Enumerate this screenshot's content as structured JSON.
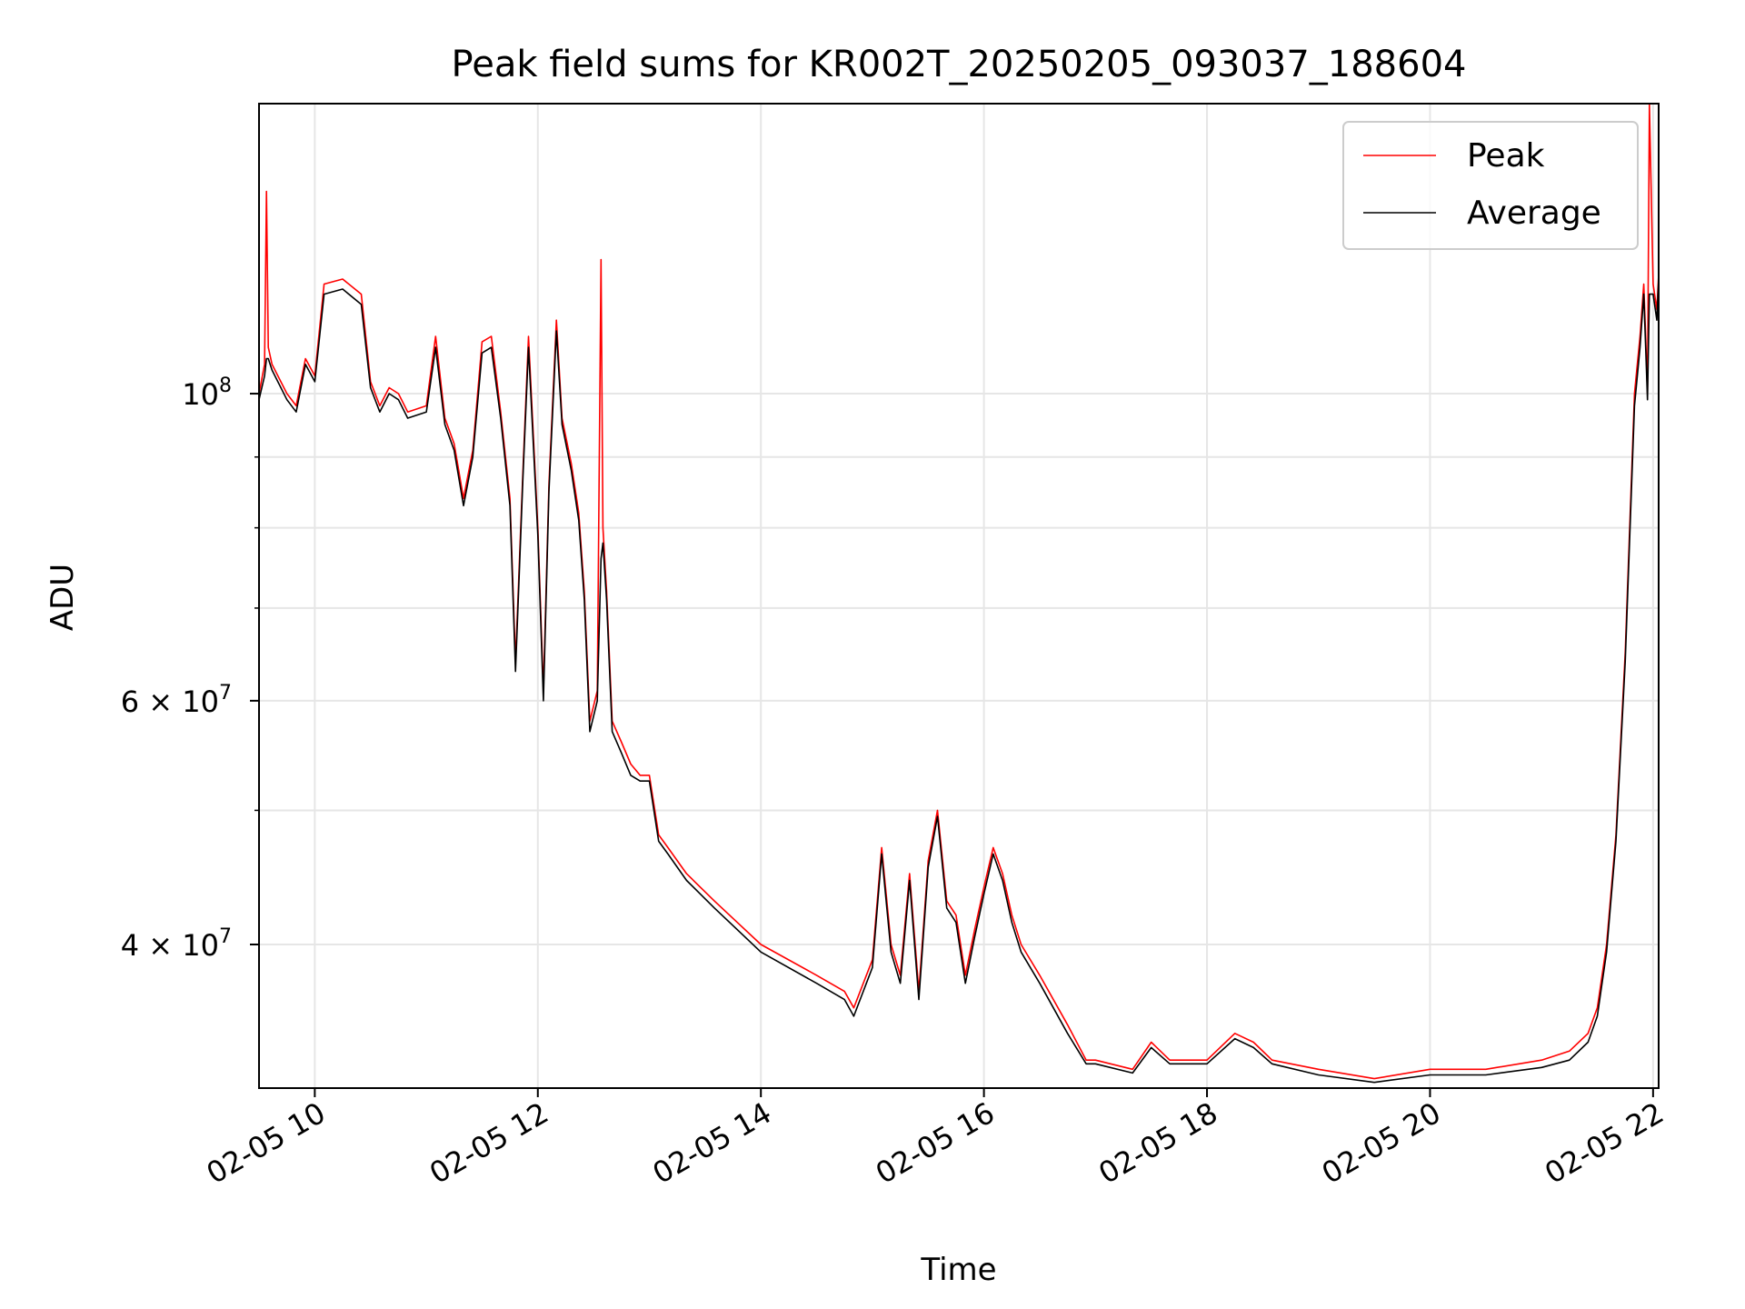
{
  "chart_data": {
    "type": "line",
    "title": "Peak field sums for KR002T_20250205_093037_188604",
    "xlabel": "Time",
    "ylabel": "ADU",
    "yscale": "log",
    "xlim": [
      "02-05 09:30",
      "02-05 22:03"
    ],
    "ylim": [
      31500000,
      162000000
    ],
    "grid": true,
    "legend_position": "top-right",
    "x_ticks": [
      {
        "value": "02-05 10:00",
        "label": "02-05 10"
      },
      {
        "value": "02-05 12:00",
        "label": "02-05 12"
      },
      {
        "value": "02-05 14:00",
        "label": "02-05 14"
      },
      {
        "value": "02-05 16:00",
        "label": "02-05 16"
      },
      {
        "value": "02-05 18:00",
        "label": "02-05 18"
      },
      {
        "value": "02-05 20:00",
        "label": "02-05 20"
      },
      {
        "value": "02-05 22:00",
        "label": "02-05 22"
      }
    ],
    "y_ticks": [
      {
        "value": 100000000,
        "mantissa": "",
        "base": "10",
        "exp": "8"
      },
      {
        "value": 60000000,
        "mantissa": "6",
        "base": "10",
        "exp": "7"
      },
      {
        "value": 40000000,
        "mantissa": "4",
        "base": "10",
        "exp": "7"
      }
    ],
    "y_minor_ticks": [
      50000000,
      70000000,
      80000000,
      90000000
    ],
    "series": [
      {
        "name": "Peak",
        "color": "#ff0000",
        "x": [
          "02-05 09:30",
          "02-05 09:33",
          "02-05 09:34",
          "02-05 09:35",
          "02-05 09:37",
          "02-05 09:45",
          "02-05 09:50",
          "02-05 09:55",
          "02-05 10:00",
          "02-05 10:05",
          "02-05 10:15",
          "02-05 10:25",
          "02-05 10:30",
          "02-05 10:35",
          "02-05 10:40",
          "02-05 10:45",
          "02-05 10:50",
          "02-05 11:00",
          "02-05 11:05",
          "02-05 11:10",
          "02-05 11:15",
          "02-05 11:20",
          "02-05 11:25",
          "02-05 11:30",
          "02-05 11:35",
          "02-05 11:40",
          "02-05 11:45",
          "02-05 11:48",
          "02-05 11:52",
          "02-05 11:55",
          "02-05 12:00",
          "02-05 12:03",
          "02-05 12:06",
          "02-05 12:10",
          "02-05 12:13",
          "02-05 12:18",
          "02-05 12:22",
          "02-05 12:25",
          "02-05 12:28",
          "02-05 12:32",
          "02-05 12:34",
          "02-05 12:35",
          "02-05 12:37",
          "02-05 12:40",
          "02-05 12:45",
          "02-05 12:50",
          "02-05 12:55",
          "02-05 13:00",
          "02-05 13:05",
          "02-05 13:10",
          "02-05 13:20",
          "02-05 13:35",
          "02-05 14:00",
          "02-05 14:30",
          "02-05 14:45",
          "02-05 14:50",
          "02-05 15:00",
          "02-05 15:05",
          "02-05 15:10",
          "02-05 15:15",
          "02-05 15:20",
          "02-05 15:25",
          "02-05 15:30",
          "02-05 15:35",
          "02-05 15:40",
          "02-05 15:45",
          "02-05 15:50",
          "02-05 15:55",
          "02-05 16:00",
          "02-05 16:05",
          "02-05 16:10",
          "02-05 16:15",
          "02-05 16:20",
          "02-05 16:30",
          "02-05 16:45",
          "02-05 16:55",
          "02-05 17:00",
          "02-05 17:20",
          "02-05 17:30",
          "02-05 17:40",
          "02-05 18:00",
          "02-05 18:15",
          "02-05 18:25",
          "02-05 18:35",
          "02-05 19:00",
          "02-05 19:30",
          "02-05 20:00",
          "02-05 20:30",
          "02-05 21:00",
          "02-05 21:15",
          "02-05 21:25",
          "02-05 21:30",
          "02-05 21:35",
          "02-05 21:40",
          "02-05 21:45",
          "02-05 21:50",
          "02-05 21:53",
          "02-05 21:55",
          "02-05 21:56",
          "02-05 21:57",
          "02-05 21:58",
          "02-05 22:00",
          "02-05 22:02",
          "02-05 22:03"
        ],
        "y": [
          100000000,
          105000000,
          140000000,
          108000000,
          105000000,
          100000000,
          98000000,
          106000000,
          103000000,
          120000000,
          121000000,
          118000000,
          102000000,
          98000000,
          101000000,
          100000000,
          97000000,
          98000000,
          110000000,
          96000000,
          92000000,
          84000000,
          91000000,
          109000000,
          110000000,
          97000000,
          84000000,
          64000000,
          88000000,
          110000000,
          80000000,
          61000000,
          86000000,
          113000000,
          96000000,
          89000000,
          82000000,
          72000000,
          58000000,
          61000000,
          125000000,
          80000000,
          72000000,
          58000000,
          56000000,
          54000000,
          53000000,
          53000000,
          48000000,
          47000000,
          45000000,
          43000000,
          40000000,
          38000000,
          37000000,
          36000000,
          39000000,
          47000000,
          40000000,
          38000000,
          45000000,
          37000000,
          46000000,
          50000000,
          43000000,
          42000000,
          38000000,
          41000000,
          44000000,
          47000000,
          45000000,
          42000000,
          40000000,
          38000000,
          35000000,
          33000000,
          33000000,
          32500000,
          34000000,
          33000000,
          33000000,
          34500000,
          34000000,
          33000000,
          32500000,
          32000000,
          32500000,
          32500000,
          33000000,
          33500000,
          34500000,
          36000000,
          40000000,
          48000000,
          65000000,
          100000000,
          110000000,
          120000000,
          110000000,
          100000000,
          162000000,
          120000000,
          115000000,
          122000000
        ]
      },
      {
        "name": "Average",
        "color": "#000000",
        "x": [
          "02-05 09:30",
          "02-05 09:33",
          "02-05 09:34",
          "02-05 09:35",
          "02-05 09:37",
          "02-05 09:45",
          "02-05 09:50",
          "02-05 09:55",
          "02-05 10:00",
          "02-05 10:05",
          "02-05 10:15",
          "02-05 10:25",
          "02-05 10:30",
          "02-05 10:35",
          "02-05 10:40",
          "02-05 10:45",
          "02-05 10:50",
          "02-05 11:00",
          "02-05 11:05",
          "02-05 11:10",
          "02-05 11:15",
          "02-05 11:20",
          "02-05 11:25",
          "02-05 11:30",
          "02-05 11:35",
          "02-05 11:40",
          "02-05 11:45",
          "02-05 11:48",
          "02-05 11:52",
          "02-05 11:55",
          "02-05 12:00",
          "02-05 12:03",
          "02-05 12:06",
          "02-05 12:10",
          "02-05 12:13",
          "02-05 12:18",
          "02-05 12:22",
          "02-05 12:25",
          "02-05 12:28",
          "02-05 12:32",
          "02-05 12:34",
          "02-05 12:35",
          "02-05 12:37",
          "02-05 12:40",
          "02-05 12:45",
          "02-05 12:50",
          "02-05 12:55",
          "02-05 13:00",
          "02-05 13:05",
          "02-05 13:10",
          "02-05 13:20",
          "02-05 13:35",
          "02-05 14:00",
          "02-05 14:30",
          "02-05 14:45",
          "02-05 14:50",
          "02-05 15:00",
          "02-05 15:05",
          "02-05 15:10",
          "02-05 15:15",
          "02-05 15:20",
          "02-05 15:25",
          "02-05 15:30",
          "02-05 15:35",
          "02-05 15:40",
          "02-05 15:45",
          "02-05 15:50",
          "02-05 15:55",
          "02-05 16:00",
          "02-05 16:05",
          "02-05 16:10",
          "02-05 16:15",
          "02-05 16:20",
          "02-05 16:30",
          "02-05 16:45",
          "02-05 16:55",
          "02-05 17:00",
          "02-05 17:20",
          "02-05 17:30",
          "02-05 17:40",
          "02-05 18:00",
          "02-05 18:15",
          "02-05 18:25",
          "02-05 18:35",
          "02-05 19:00",
          "02-05 19:30",
          "02-05 20:00",
          "02-05 20:30",
          "02-05 21:00",
          "02-05 21:15",
          "02-05 21:25",
          "02-05 21:30",
          "02-05 21:35",
          "02-05 21:40",
          "02-05 21:45",
          "02-05 21:50",
          "02-05 21:53",
          "02-05 21:55",
          "02-05 21:56",
          "02-05 21:57",
          "02-05 21:58",
          "02-05 22:00",
          "02-05 22:02",
          "02-05 22:03"
        ],
        "y": [
          99000000,
          103000000,
          106000000,
          106000000,
          104000000,
          99000000,
          97000000,
          105000000,
          102000000,
          118000000,
          119000000,
          116000000,
          101000000,
          97000000,
          100000000,
          99000000,
          96000000,
          97000000,
          108000000,
          95000000,
          91000000,
          83000000,
          90000000,
          107000000,
          108000000,
          96000000,
          83000000,
          63000000,
          87000000,
          108000000,
          79000000,
          60000000,
          85000000,
          111000000,
          95000000,
          88000000,
          81000000,
          71000000,
          57000000,
          60000000,
          76000000,
          78000000,
          71000000,
          57000000,
          55000000,
          53000000,
          52500000,
          52500000,
          47500000,
          46500000,
          44500000,
          42500000,
          39500000,
          37500000,
          36500000,
          35500000,
          38500000,
          46500000,
          39500000,
          37500000,
          44500000,
          36500000,
          45500000,
          49500000,
          42500000,
          41500000,
          37500000,
          40500000,
          43500000,
          46500000,
          44500000,
          41500000,
          39500000,
          37500000,
          34500000,
          32800000,
          32800000,
          32300000,
          33700000,
          32800000,
          32800000,
          34200000,
          33700000,
          32800000,
          32200000,
          31800000,
          32200000,
          32200000,
          32600000,
          33000000,
          34000000,
          35500000,
          39500000,
          47500000,
          64000000,
          98000000,
          108000000,
          118000000,
          108000000,
          99000000,
          118000000,
          118000000,
          113000000,
          121000000
        ]
      }
    ]
  }
}
